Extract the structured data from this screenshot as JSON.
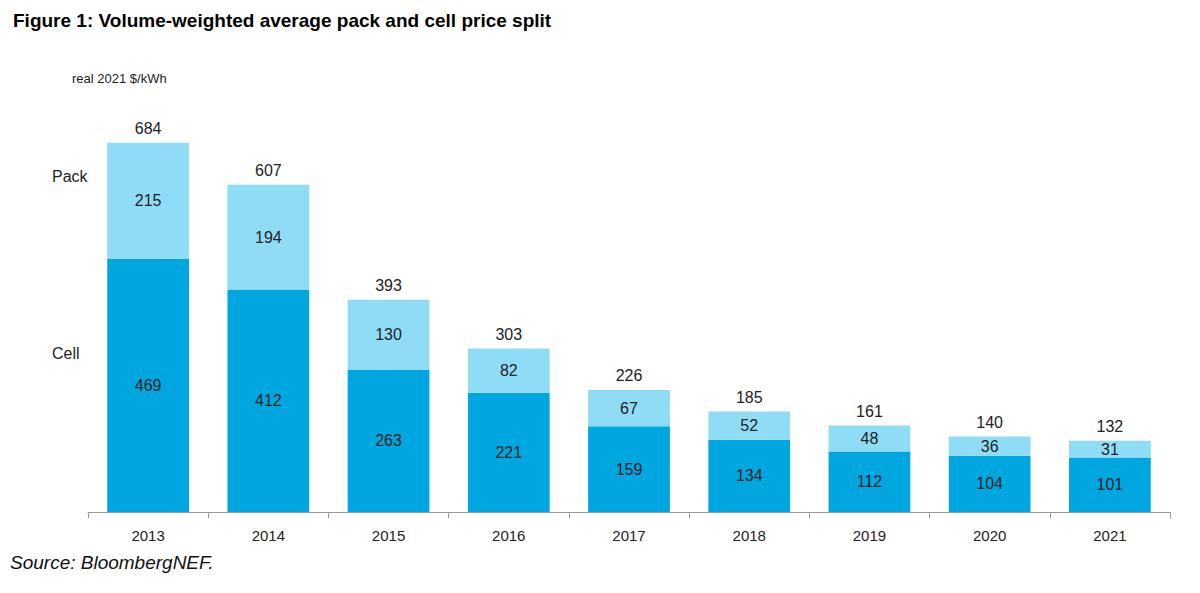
{
  "chart_data": {
    "type": "bar",
    "title": "Figure 1: Volume-weighted average pack and cell price split",
    "y_label": "real 2021 $/kWh",
    "source": "Source: BloombergNEF.",
    "categories": [
      "2013",
      "2014",
      "2015",
      "2016",
      "2017",
      "2018",
      "2019",
      "2020",
      "2021"
    ],
    "series": [
      {
        "name": "Cell",
        "color": "#00a6e0",
        "values": [
          469,
          412,
          263,
          221,
          159,
          134,
          112,
          104,
          101
        ]
      },
      {
        "name": "Pack",
        "color": "#8fdcf7",
        "values": [
          215,
          194,
          130,
          82,
          67,
          52,
          48,
          36,
          31
        ]
      }
    ],
    "totals": [
      684,
      607,
      393,
      303,
      226,
      185,
      161,
      140,
      132
    ],
    "ylim": [
      0,
      750
    ],
    "stacked": true,
    "data_labels": true,
    "tick_labels": "x",
    "grid": false
  }
}
